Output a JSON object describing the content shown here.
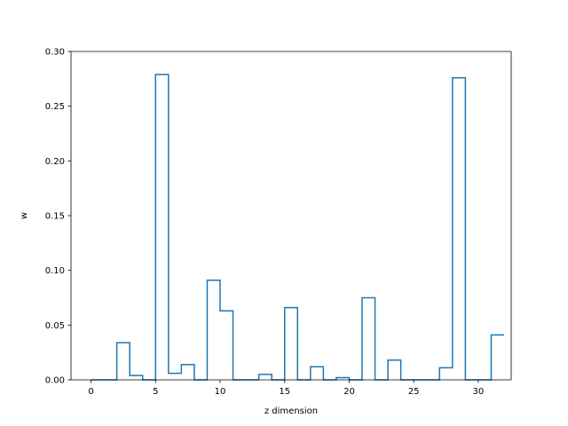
{
  "chart_data": {
    "type": "bar",
    "style": "step-histogram",
    "title": "",
    "xlabel": "z dimension",
    "ylabel": "w",
    "xlim": [
      -1.55,
      32.55
    ],
    "ylim": [
      0,
      0.3
    ],
    "xticks": [
      0,
      5,
      10,
      15,
      20,
      25,
      30
    ],
    "yticks": [
      0.0,
      0.05,
      0.1,
      0.15,
      0.2,
      0.25,
      0.3
    ],
    "ytick_labels": [
      "0.00",
      "0.05",
      "0.10",
      "0.15",
      "0.20",
      "0.25",
      "0.30"
    ],
    "grid": false,
    "legend": "none",
    "series_color": "#1f77b4",
    "categories": [
      0,
      1,
      2,
      3,
      4,
      5,
      6,
      7,
      8,
      9,
      10,
      11,
      12,
      13,
      14,
      15,
      16,
      17,
      18,
      19,
      20,
      21,
      22,
      23,
      24,
      25,
      26,
      27,
      28,
      29,
      30,
      31
    ],
    "values": [
      0.0,
      0.0,
      0.034,
      0.004,
      0.0,
      0.279,
      0.006,
      0.014,
      0.0,
      0.091,
      0.063,
      0.0,
      0.0,
      0.005,
      0.0,
      0.066,
      0.0,
      0.012,
      0.0,
      0.002,
      0.0,
      0.075,
      0.0,
      0.018,
      0.0,
      0.0,
      0.0,
      0.011,
      0.276,
      0.0,
      0.0,
      0.041
    ]
  }
}
